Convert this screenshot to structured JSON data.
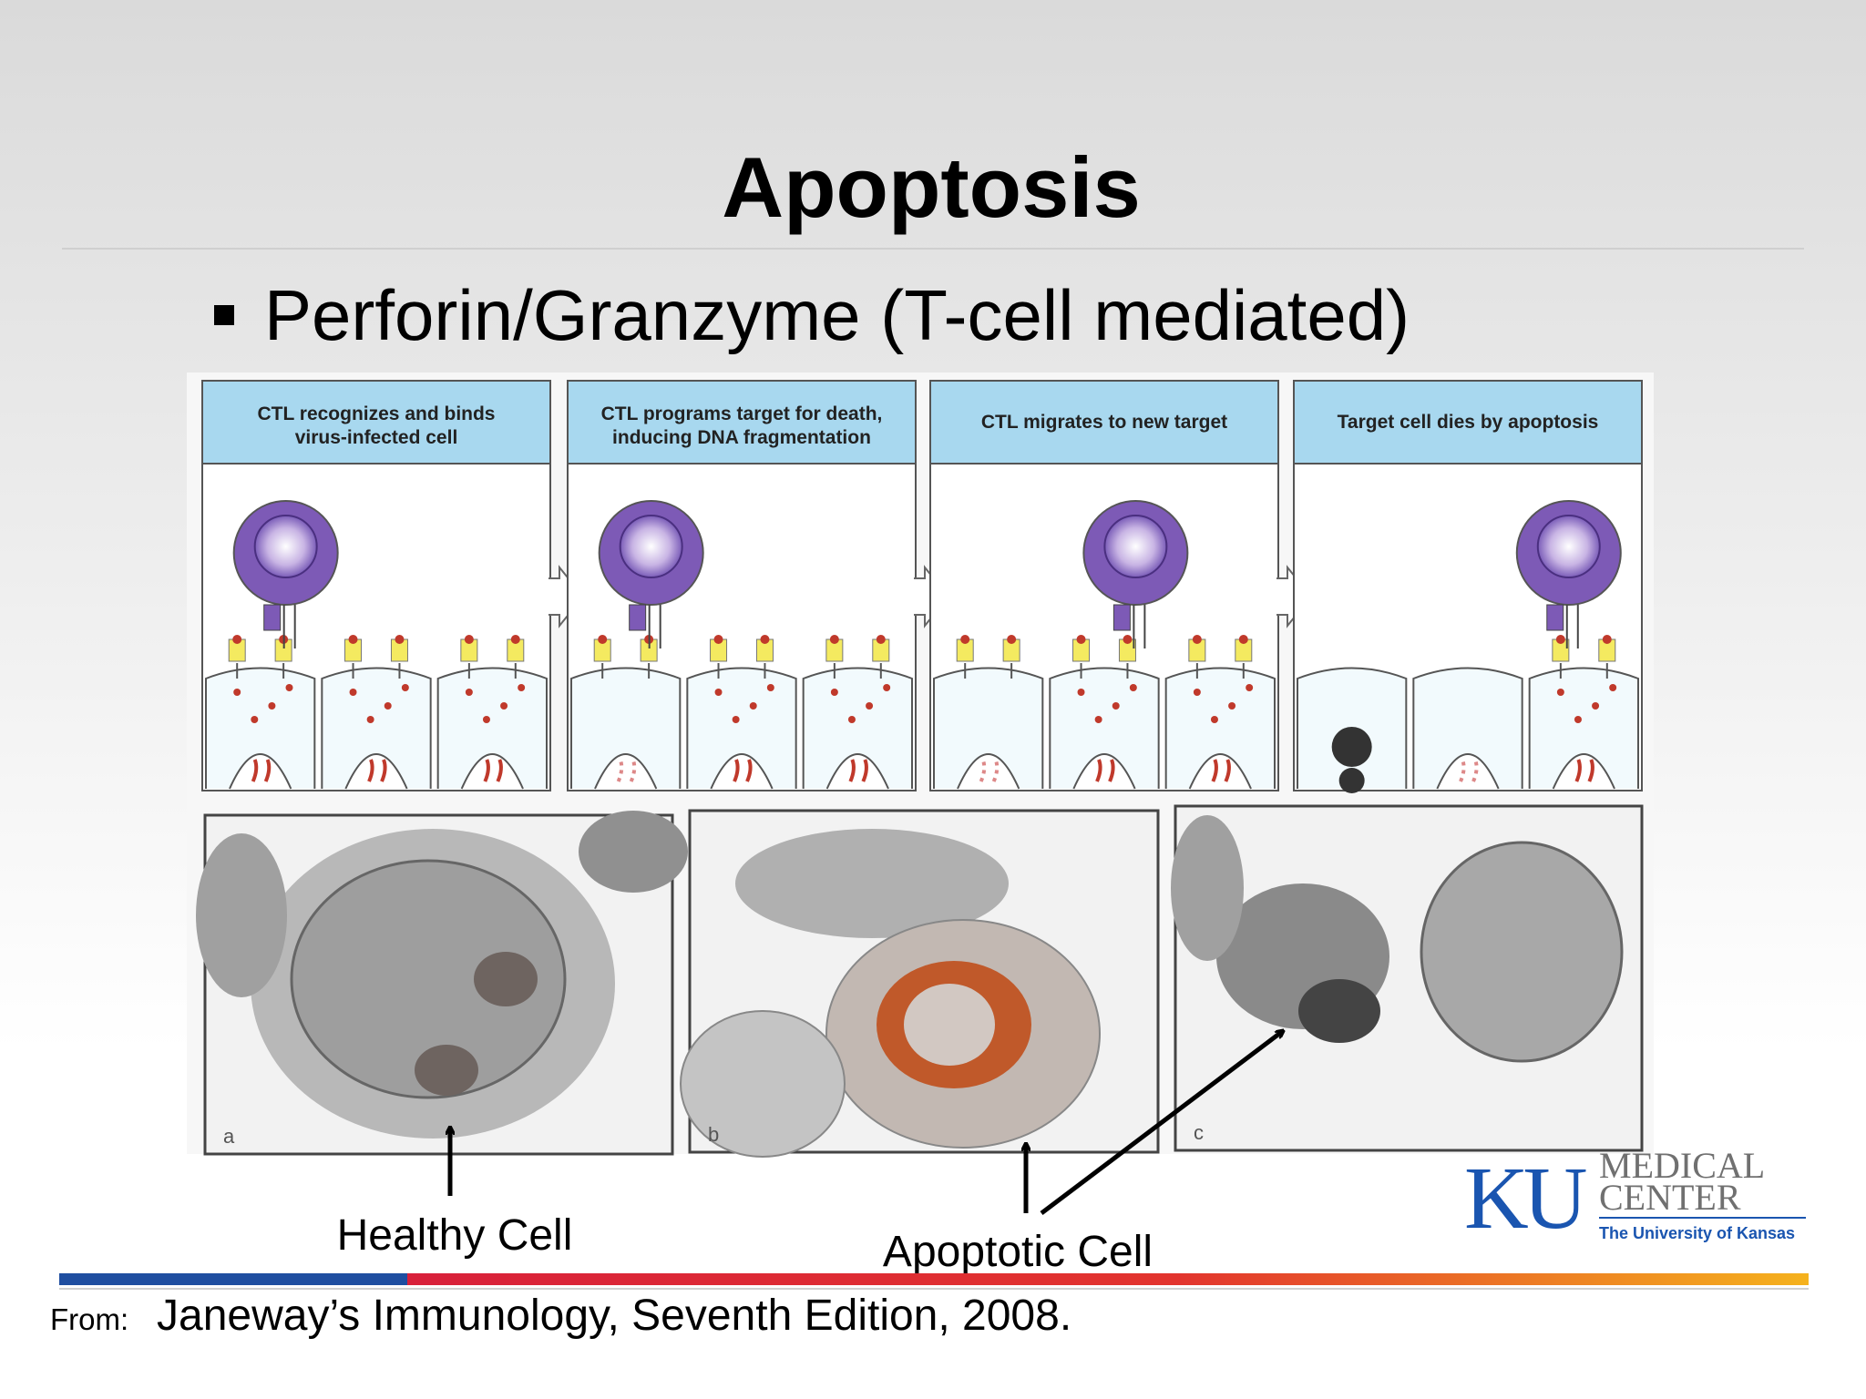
{
  "title": "Apoptosis",
  "bullet": "Perforin/Granzyme (T-cell mediated)",
  "figure": {
    "panels": [
      {
        "lines": [
          "CTL recognizes and binds",
          "virus-infected cell"
        ]
      },
      {
        "lines": [
          "CTL programs target for death,",
          "inducing DNA fragmentation"
        ]
      },
      {
        "lines": [
          "CTL migrates to new target"
        ]
      },
      {
        "lines": [
          "Target cell dies by apoptosis"
        ]
      }
    ],
    "photos": [
      {
        "label": "a"
      },
      {
        "label": "b"
      },
      {
        "label": "c"
      }
    ]
  },
  "annotations": {
    "healthy": "Healthy Cell",
    "apoptotic": "Apoptotic Cell"
  },
  "source": {
    "prefix": "From:",
    "text": "Janeway’s Immunology, Seventh Edition, 2008."
  },
  "logo": {
    "mark": "KU",
    "line1": "MEDICAL",
    "line2": "CENTER",
    "tagline": "The University of Kansas"
  }
}
